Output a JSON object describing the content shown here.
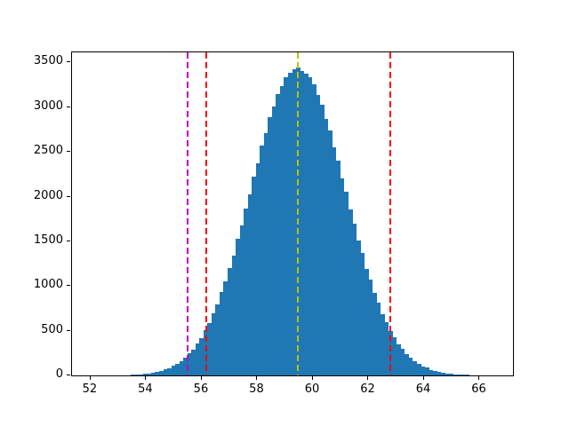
{
  "figure": {
    "background": "#ffffff",
    "kind": "matplotlib-histogram"
  },
  "chart_data": {
    "type": "bar",
    "subtype": "histogram",
    "title": "",
    "xlabel": "",
    "ylabel": "",
    "grid": false,
    "legend": null,
    "xlim": [
      51.33,
      67.2
    ],
    "ylim": [
      0,
      3613
    ],
    "xticks": [
      52,
      54,
      56,
      58,
      60,
      62,
      64,
      66
    ],
    "yticks": [
      0,
      500,
      1000,
      1500,
      2000,
      2500,
      3000,
      3500
    ],
    "bar_color": "#1f77b4",
    "bins": {
      "start": 52.0,
      "width": 0.145,
      "counts": [
        0,
        0,
        1,
        1,
        1,
        2,
        2,
        3,
        4,
        5,
        8,
        10,
        13,
        18,
        23,
        30,
        40,
        52,
        66,
        80,
        105,
        128,
        163,
        195,
        245,
        290,
        356,
        418,
        505,
        585,
        695,
        795,
        930,
        1050,
        1205,
        1345,
        1525,
        1675,
        1865,
        2025,
        2220,
        2375,
        2570,
        2712,
        2885,
        3005,
        3148,
        3235,
        3338,
        3380,
        3428,
        3440,
        3405,
        3372,
        3340,
        3255,
        3132,
        3030,
        2870,
        2738,
        2553,
        2403,
        2208,
        2050,
        1852,
        1697,
        1512,
        1365,
        1196,
        1068,
        920,
        810,
        687,
        598,
        497,
        429,
        350,
        299,
        238,
        203,
        158,
        134,
        101,
        86,
        63,
        54,
        38,
        33,
        22,
        19,
        13,
        11,
        7,
        6,
        4,
        3,
        2,
        2,
        1,
        1
      ]
    },
    "distribution_summary": {
      "mean": 59.47,
      "peak_count": 3440
    },
    "vlines": [
      {
        "name": "vline-magenta",
        "x": 55.5,
        "color": "#bf00bf",
        "style": "dashed",
        "linewidth": 2
      },
      {
        "name": "vline-red-lower",
        "x": 56.17,
        "color": "#ff0000",
        "style": "dashed",
        "linewidth": 2
      },
      {
        "name": "vline-yellow-mean",
        "x": 59.47,
        "color": "#bfbf00",
        "style": "dashed",
        "linewidth": 2
      },
      {
        "name": "vline-red-upper",
        "x": 62.78,
        "color": "#ff0000",
        "style": "dashed",
        "linewidth": 2
      }
    ]
  }
}
